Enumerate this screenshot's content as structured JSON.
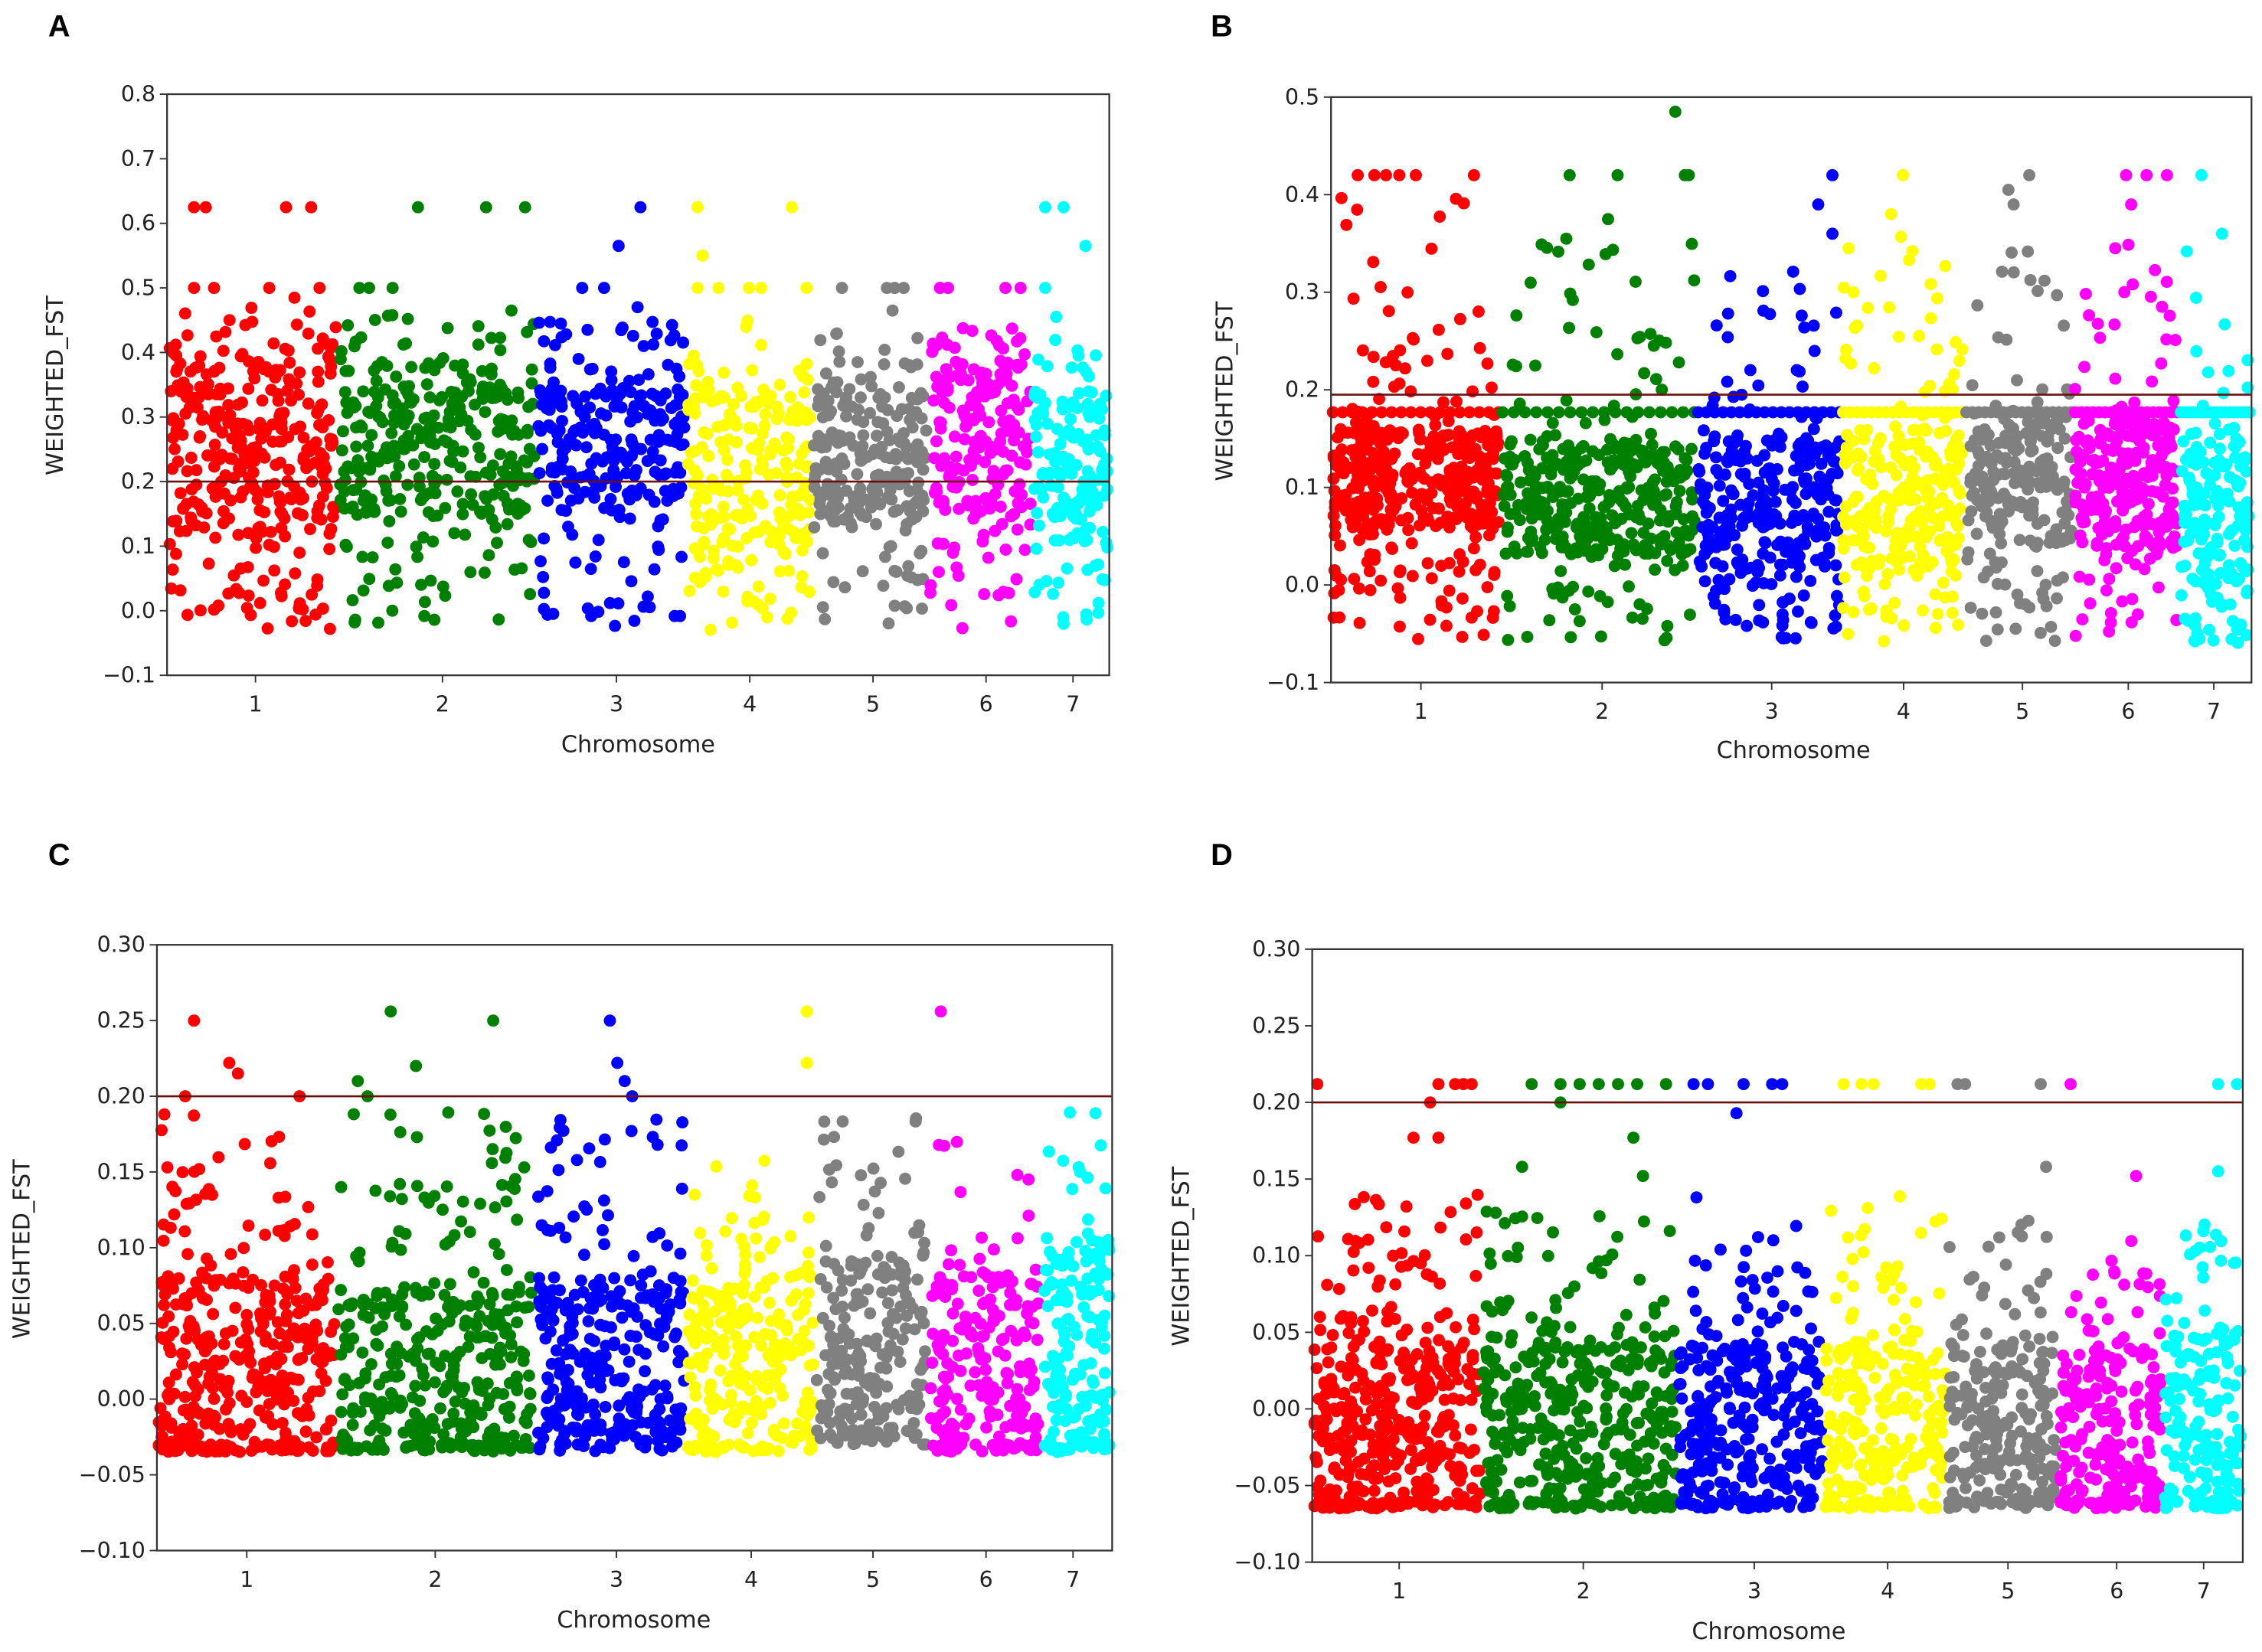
{
  "chart_data": [
    {
      "panel": "A",
      "type": "scatter",
      "subtype": "manhattan",
      "xlabel": "Chromosome",
      "ylabel": "WEIGHTED_FST",
      "ylim": [
        -0.1,
        0.8
      ],
      "yticks": [
        -0.1,
        0.0,
        0.1,
        0.2,
        0.3,
        0.4,
        0.5,
        0.6,
        0.7,
        0.8
      ],
      "ytick_labels": [
        "−0.1",
        "0.0",
        "0.1",
        "0.2",
        "0.3",
        "0.4",
        "0.5",
        "0.6",
        "0.7",
        "0.8"
      ],
      "categories": [
        "1",
        "2",
        "3",
        "4",
        "5",
        "6",
        "7"
      ],
      "threshold": 0.2,
      "chromosomes": [
        {
          "chr": "1",
          "color": "#ff0000",
          "core": [
            0.12,
            0.37
          ],
          "spread": [
            -0.035,
            0.47
          ],
          "n": 330,
          "outliers": [
            [
              0.15,
              0.625
            ],
            [
              0.22,
              0.625
            ],
            [
              0.7,
              0.625
            ],
            [
              0.85,
              0.625
            ],
            [
              0.15,
              0.5
            ],
            [
              0.27,
              0.5
            ],
            [
              0.6,
              0.5
            ],
            [
              0.9,
              0.5
            ],
            [
              0.75,
              0.485
            ]
          ]
        },
        {
          "chr": "2",
          "color": "#008000",
          "core": [
            0.15,
            0.35
          ],
          "spread": [
            -0.03,
            0.46
          ],
          "n": 330,
          "outliers": [
            [
              0.4,
              0.625
            ],
            [
              0.75,
              0.625
            ],
            [
              0.95,
              0.625
            ],
            [
              0.1,
              0.5
            ],
            [
              0.15,
              0.5
            ],
            [
              0.27,
              0.5
            ],
            [
              0.88,
              0.465
            ]
          ]
        },
        {
          "chr": "3",
          "color": "#0000ff",
          "core": [
            0.17,
            0.34
          ],
          "spread": [
            -0.03,
            0.45
          ],
          "n": 260,
          "outliers": [
            [
              0.7,
              0.625
            ],
            [
              0.55,
              0.565
            ],
            [
              0.3,
              0.5
            ],
            [
              0.45,
              0.5
            ],
            [
              0.68,
              0.47
            ]
          ]
        },
        {
          "chr": "4",
          "color": "#ffff00",
          "core": [
            0.08,
            0.33
          ],
          "spread": [
            -0.03,
            0.45
          ],
          "n": 230,
          "outliers": [
            [
              0.08,
              0.625
            ],
            [
              0.85,
              0.625
            ],
            [
              0.12,
              0.55
            ],
            [
              0.08,
              0.5
            ],
            [
              0.25,
              0.5
            ],
            [
              0.5,
              0.5
            ],
            [
              0.6,
              0.5
            ],
            [
              0.97,
              0.5
            ]
          ]
        },
        {
          "chr": "5",
          "color": "#808080",
          "core": [
            0.14,
            0.33
          ],
          "spread": [
            -0.03,
            0.43
          ],
          "n": 230,
          "outliers": [
            [
              0.25,
              0.5
            ],
            [
              0.65,
              0.5
            ],
            [
              0.72,
              0.5
            ],
            [
              0.8,
              0.5
            ],
            [
              0.7,
              0.465
            ]
          ]
        },
        {
          "chr": "6",
          "color": "#ff00ff",
          "core": [
            0.15,
            0.38
          ],
          "spread": [
            -0.03,
            0.45
          ],
          "n": 200,
          "outliers": [
            [
              0.1,
              0.5
            ],
            [
              0.18,
              0.5
            ],
            [
              0.75,
              0.5
            ],
            [
              0.9,
              0.5
            ]
          ]
        },
        {
          "chr": "7",
          "color": "#00ffff",
          "core": [
            0.1,
            0.32
          ],
          "spread": [
            -0.02,
            0.43
          ],
          "n": 150,
          "outliers": [
            [
              0.15,
              0.625
            ],
            [
              0.4,
              0.625
            ],
            [
              0.7,
              0.565
            ],
            [
              0.15,
              0.5
            ],
            [
              0.3,
              0.455
            ],
            [
              0.4,
              -0.02
            ]
          ]
        }
      ]
    },
    {
      "panel": "B",
      "type": "scatter",
      "subtype": "manhattan",
      "xlabel": "Chromosome",
      "ylabel": "WEIGHTED_FST",
      "ylim": [
        -0.1,
        0.5
      ],
      "yticks": [
        -0.1,
        0.0,
        0.1,
        0.2,
        0.3,
        0.4,
        0.5
      ],
      "ytick_labels": [
        "−0.1",
        "0.0",
        "0.1",
        "0.2",
        "0.3",
        "0.4",
        "0.5"
      ],
      "categories": [
        "1",
        "2",
        "3",
        "4",
        "5",
        "6",
        "7"
      ],
      "threshold": 0.195,
      "band": 0.177,
      "chromosomes": [
        {
          "chr": "1",
          "color": "#ff0000",
          "core": [
            0.06,
            0.16
          ],
          "spread": [
            -0.06,
            0.4
          ],
          "n": 420,
          "outliers": [
            [
              0.15,
              0.42
            ],
            [
              0.25,
              0.42
            ],
            [
              0.32,
              0.42
            ],
            [
              0.4,
              0.42
            ],
            [
              0.5,
              0.42
            ],
            [
              0.85,
              0.42
            ]
          ]
        },
        {
          "chr": "2",
          "color": "#008000",
          "core": [
            0.03,
            0.15
          ],
          "spread": [
            -0.06,
            0.36
          ],
          "n": 380,
          "outliers": [
            [
              0.9,
              0.485
            ],
            [
              0.35,
              0.42
            ],
            [
              0.6,
              0.42
            ],
            [
              0.95,
              0.42
            ],
            [
              0.97,
              0.42
            ],
            [
              0.55,
              0.375
            ]
          ]
        },
        {
          "chr": "3",
          "color": "#0000ff",
          "core": [
            0.02,
            0.15
          ],
          "spread": [
            -0.055,
            0.33
          ],
          "n": 300,
          "outliers": [
            [
              0.95,
              0.42
            ],
            [
              0.85,
              0.39
            ],
            [
              0.95,
              0.36
            ]
          ]
        },
        {
          "chr": "4",
          "color": "#ffff00",
          "core": [
            0.02,
            0.16
          ],
          "spread": [
            -0.06,
            0.36
          ],
          "n": 260,
          "outliers": [
            [
              0.5,
              0.42
            ],
            [
              0.4,
              0.38
            ]
          ]
        },
        {
          "chr": "5",
          "color": "#808080",
          "core": [
            0.04,
            0.17
          ],
          "spread": [
            -0.06,
            0.36
          ],
          "n": 220,
          "outliers": [
            [
              0.6,
              0.42
            ],
            [
              0.4,
              0.405
            ],
            [
              0.45,
              0.39
            ]
          ]
        },
        {
          "chr": "6",
          "color": "#ff00ff",
          "core": [
            0.04,
            0.17
          ],
          "spread": [
            -0.055,
            0.36
          ],
          "n": 260,
          "outliers": [
            [
              0.5,
              0.42
            ],
            [
              0.9,
              0.42
            ],
            [
              0.7,
              0.42
            ],
            [
              0.55,
              0.39
            ]
          ]
        },
        {
          "chr": "7",
          "color": "#00ffff",
          "core": [
            0.0,
            0.15
          ],
          "spread": [
            -0.06,
            0.36
          ],
          "n": 170,
          "outliers": [
            [
              0.3,
              0.42
            ],
            [
              0.6,
              0.36
            ]
          ]
        }
      ]
    },
    {
      "panel": "C",
      "type": "scatter",
      "subtype": "manhattan",
      "xlabel": "Chromosome",
      "ylabel": "WEIGHTED_FST",
      "ylim": [
        -0.1,
        0.3
      ],
      "yticks": [
        -0.1,
        -0.05,
        0.0,
        0.05,
        0.1,
        0.15,
        0.2,
        0.25,
        0.3
      ],
      "ytick_labels": [
        "−0.10",
        "−0.05",
        "0.00",
        "0.05",
        "0.10",
        "0.15",
        "0.20",
        "0.25",
        "0.30"
      ],
      "categories": [
        "1",
        "2",
        "3",
        "4",
        "5",
        "6",
        "7"
      ],
      "threshold": 0.2,
      "chromosomes": [
        {
          "chr": "1",
          "color": "#ff0000",
          "core": [
            -0.03,
            0.08
          ],
          "spread": [
            -0.035,
            0.19
          ],
          "n": 380,
          "outliers": [
            [
              0.2,
              0.25
            ],
            [
              0.4,
              0.222
            ],
            [
              0.15,
              0.2
            ],
            [
              0.45,
              0.215
            ],
            [
              0.8,
              0.2
            ]
          ]
        },
        {
          "chr": "2",
          "color": "#008000",
          "core": [
            -0.03,
            0.07
          ],
          "spread": [
            -0.035,
            0.19
          ],
          "n": 380,
          "outliers": [
            [
              0.27,
              0.256
            ],
            [
              0.8,
              0.25
            ],
            [
              0.4,
              0.22
            ],
            [
              0.1,
              0.21
            ],
            [
              0.15,
              0.2
            ]
          ]
        },
        {
          "chr": "3",
          "color": "#0000ff",
          "core": [
            -0.02,
            0.08
          ],
          "spread": [
            -0.035,
            0.19
          ],
          "n": 300,
          "outliers": [
            [
              0.5,
              0.25
            ],
            [
              0.55,
              0.222
            ],
            [
              0.6,
              0.21
            ],
            [
              0.65,
              0.2
            ]
          ]
        },
        {
          "chr": "4",
          "color": "#ffff00",
          "core": [
            -0.03,
            0.08
          ],
          "spread": [
            -0.035,
            0.18
          ],
          "n": 250,
          "outliers": [
            [
              0.95,
              0.256
            ],
            [
              0.95,
              0.222
            ]
          ]
        },
        {
          "chr": "5",
          "color": "#808080",
          "core": [
            -0.02,
            0.09
          ],
          "spread": [
            -0.03,
            0.19
          ],
          "n": 230,
          "outliers": []
        },
        {
          "chr": "6",
          "color": "#ff00ff",
          "core": [
            -0.03,
            0.08
          ],
          "spread": [
            -0.035,
            0.18
          ],
          "n": 220,
          "outliers": [
            [
              0.1,
              0.256
            ]
          ]
        },
        {
          "chr": "7",
          "color": "#00ffff",
          "core": [
            -0.03,
            0.1
          ],
          "spread": [
            -0.035,
            0.19
          ],
          "n": 170,
          "outliers": []
        }
      ]
    },
    {
      "panel": "D",
      "type": "scatter",
      "subtype": "manhattan",
      "xlabel": "Chromosome",
      "ylabel": "WEIGHTED_FST",
      "ylim": [
        -0.1,
        0.3
      ],
      "yticks": [
        -0.1,
        -0.05,
        0.0,
        0.05,
        0.1,
        0.15,
        0.2,
        0.25,
        0.3
      ],
      "ytick_labels": [
        "−0.10",
        "−0.05",
        "0.00",
        "0.05",
        "0.10",
        "0.15",
        "0.20",
        "0.25",
        "0.30"
      ],
      "categories": [
        "1",
        "2",
        "3",
        "4",
        "5",
        "6",
        "7"
      ],
      "threshold": 0.2,
      "chromosomes": [
        {
          "chr": "1",
          "color": "#ff0000",
          "core": [
            -0.06,
            0.04
          ],
          "spread": [
            -0.065,
            0.14
          ],
          "n": 420,
          "outliers": [
            [
              0.02,
              0.212
            ],
            [
              0.75,
              0.212
            ],
            [
              0.85,
              0.212
            ],
            [
              0.9,
              0.212
            ],
            [
              0.95,
              0.212
            ],
            [
              0.7,
              0.2
            ],
            [
              0.6,
              0.177
            ],
            [
              0.75,
              0.177
            ]
          ]
        },
        {
          "chr": "2",
          "color": "#008000",
          "core": [
            -0.06,
            0.04
          ],
          "spread": [
            -0.065,
            0.13
          ],
          "n": 420,
          "outliers": [
            [
              0.25,
              0.212
            ],
            [
              0.4,
              0.212
            ],
            [
              0.5,
              0.212
            ],
            [
              0.6,
              0.212
            ],
            [
              0.7,
              0.212
            ],
            [
              0.8,
              0.212
            ],
            [
              0.95,
              0.212
            ],
            [
              0.4,
              0.2
            ],
            [
              0.78,
              0.177
            ],
            [
              0.2,
              0.158
            ],
            [
              0.83,
              0.152
            ]
          ]
        },
        {
          "chr": "3",
          "color": "#0000ff",
          "core": [
            -0.06,
            0.04
          ],
          "spread": [
            -0.065,
            0.12
          ],
          "n": 320,
          "outliers": [
            [
              0.1,
              0.212
            ],
            [
              0.2,
              0.212
            ],
            [
              0.45,
              0.212
            ],
            [
              0.65,
              0.212
            ],
            [
              0.72,
              0.212
            ],
            [
              0.4,
              0.193
            ],
            [
              0.12,
              0.138
            ]
          ]
        },
        {
          "chr": "4",
          "color": "#ffff00",
          "core": [
            -0.06,
            0.04
          ],
          "spread": [
            -0.065,
            0.14
          ],
          "n": 270,
          "outliers": [
            [
              0.15,
              0.212
            ],
            [
              0.3,
              0.212
            ],
            [
              0.4,
              0.212
            ],
            [
              0.8,
              0.212
            ],
            [
              0.87,
              0.212
            ]
          ]
        },
        {
          "chr": "5",
          "color": "#808080",
          "core": [
            -0.06,
            0.04
          ],
          "spread": [
            -0.065,
            0.13
          ],
          "n": 240,
          "outliers": [
            [
              0.08,
              0.212
            ],
            [
              0.15,
              0.212
            ],
            [
              0.85,
              0.212
            ],
            [
              0.9,
              0.158
            ]
          ]
        },
        {
          "chr": "6",
          "color": "#ff00ff",
          "core": [
            -0.06,
            0.04
          ],
          "spread": [
            -0.065,
            0.11
          ],
          "n": 230,
          "outliers": [
            [
              0.1,
              0.212
            ],
            [
              0.75,
              0.152
            ]
          ]
        },
        {
          "chr": "7",
          "color": "#00ffff",
          "core": [
            -0.06,
            0.05
          ],
          "spread": [
            -0.065,
            0.13
          ],
          "n": 180,
          "outliers": [
            [
              0.7,
              0.212
            ],
            [
              0.95,
              0.212
            ],
            [
              0.7,
              0.155
            ]
          ]
        }
      ]
    }
  ]
}
